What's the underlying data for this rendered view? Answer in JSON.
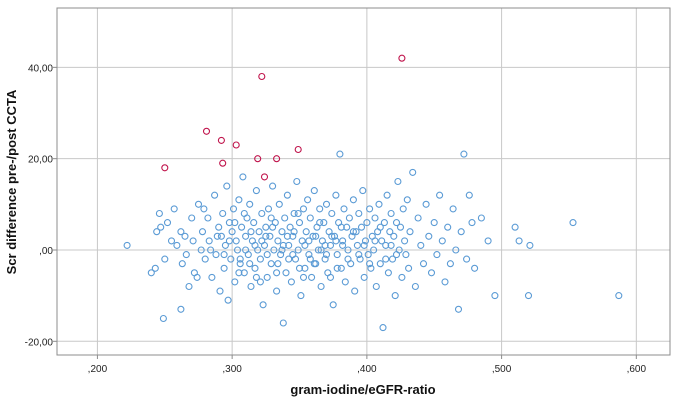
{
  "chart_data": {
    "type": "scatter",
    "title": "",
    "xlabel": "gram-iodine/eGFR-ratio",
    "ylabel": "Scr difference pre-/post CCTA",
    "xlim": [
      0.17,
      0.625
    ],
    "ylim": [
      -23,
      53
    ],
    "x_ticks": [
      0.2,
      0.3,
      0.4,
      0.5,
      0.6
    ],
    "x_tick_labels": [
      ",200",
      ",300",
      ",400",
      ",500",
      ",600"
    ],
    "y_ticks": [
      -20,
      0,
      20,
      40
    ],
    "y_tick_labels": [
      "-20,00",
      ",00",
      "20,00",
      "40,00"
    ],
    "grid": true,
    "legend": "none",
    "colors": {
      "normal": "#5b9bd5",
      "highlighted": "#c0144c",
      "grid": "#c8c8c8",
      "frame": "#8c8c8c"
    },
    "series": [
      {
        "values": [
          [
            0.222,
            1
          ],
          [
            0.24,
            -5
          ],
          [
            0.243,
            -4
          ],
          [
            0.244,
            4
          ],
          [
            0.246,
            8
          ],
          [
            0.247,
            5
          ],
          [
            0.249,
            -15
          ],
          [
            0.25,
            -2
          ],
          [
            0.252,
            6
          ],
          [
            0.255,
            2
          ],
          [
            0.257,
            9
          ],
          [
            0.259,
            1
          ],
          [
            0.262,
            -13
          ],
          [
            0.263,
            -3
          ],
          [
            0.265,
            3
          ],
          [
            0.268,
            -8
          ],
          [
            0.27,
            7
          ],
          [
            0.272,
            -5
          ],
          [
            0.275,
            10
          ],
          [
            0.277,
            0
          ],
          [
            0.278,
            4
          ],
          [
            0.28,
            -2
          ],
          [
            0.282,
            7
          ],
          [
            0.283,
            2
          ],
          [
            0.285,
            -6
          ],
          [
            0.287,
            12
          ],
          [
            0.288,
            -1
          ],
          [
            0.29,
            5
          ],
          [
            0.291,
            -9
          ],
          [
            0.292,
            3
          ],
          [
            0.293,
            8
          ],
          [
            0.294,
            -4
          ],
          [
            0.295,
            1
          ],
          [
            0.296,
            14
          ],
          [
            0.297,
            -11
          ],
          [
            0.298,
            6
          ],
          [
            0.299,
            -2
          ],
          [
            0.3,
            4
          ],
          [
            0.301,
            9
          ],
          [
            0.302,
            -7
          ],
          [
            0.303,
            2
          ],
          [
            0.304,
            0
          ],
          [
            0.305,
            11
          ],
          [
            0.306,
            -3
          ],
          [
            0.307,
            5
          ],
          [
            0.308,
            16
          ],
          [
            0.309,
            -5
          ],
          [
            0.31,
            3
          ],
          [
            0.311,
            7
          ],
          [
            0.312,
            -1
          ],
          [
            0.313,
            10
          ],
          [
            0.314,
            -8
          ],
          [
            0.315,
            2
          ],
          [
            0.316,
            6
          ],
          [
            0.317,
            -4
          ],
          [
            0.318,
            13
          ],
          [
            0.319,
            0
          ],
          [
            0.32,
            4
          ],
          [
            0.321,
            -2
          ],
          [
            0.322,
            8
          ],
          [
            0.323,
            -12
          ],
          [
            0.324,
            1
          ],
          [
            0.325,
            5
          ],
          [
            0.326,
            -6
          ],
          [
            0.327,
            9
          ],
          [
            0.328,
            3
          ],
          [
            0.329,
            -3
          ],
          [
            0.33,
            14
          ],
          [
            0.331,
            0
          ],
          [
            0.332,
            6
          ],
          [
            0.333,
            -9
          ],
          [
            0.334,
            2
          ],
          [
            0.335,
            10
          ],
          [
            0.336,
            -1
          ],
          [
            0.337,
            4
          ],
          [
            0.338,
            -16
          ],
          [
            0.339,
            7
          ],
          [
            0.34,
            -5
          ],
          [
            0.341,
            12
          ],
          [
            0.342,
            1
          ],
          [
            0.343,
            5
          ],
          [
            0.344,
            -7
          ],
          [
            0.345,
            3
          ],
          [
            0.346,
            8
          ],
          [
            0.347,
            -2
          ],
          [
            0.348,
            15
          ],
          [
            0.349,
            0
          ],
          [
            0.35,
            6
          ],
          [
            0.351,
            -10
          ],
          [
            0.352,
            2
          ],
          [
            0.353,
            9
          ],
          [
            0.354,
            -4
          ],
          [
            0.355,
            4
          ],
          [
            0.356,
            11
          ],
          [
            0.357,
            -1
          ],
          [
            0.358,
            7
          ],
          [
            0.359,
            -6
          ],
          [
            0.36,
            3
          ],
          [
            0.361,
            13
          ],
          [
            0.362,
            -3
          ],
          [
            0.363,
            5
          ],
          [
            0.364,
            0
          ],
          [
            0.365,
            9
          ],
          [
            0.366,
            -8
          ],
          [
            0.367,
            2
          ],
          [
            0.368,
            6
          ],
          [
            0.369,
            -2
          ],
          [
            0.37,
            10
          ],
          [
            0.371,
            -5
          ],
          [
            0.372,
            4
          ],
          [
            0.373,
            1
          ],
          [
            0.374,
            8
          ],
          [
            0.375,
            -12
          ],
          [
            0.376,
            3
          ],
          [
            0.377,
            12
          ],
          [
            0.378,
            -1
          ],
          [
            0.379,
            6
          ],
          [
            0.38,
            21
          ],
          [
            0.381,
            -4
          ],
          [
            0.382,
            2
          ],
          [
            0.383,
            9
          ],
          [
            0.384,
            -7
          ],
          [
            0.385,
            5
          ],
          [
            0.386,
            0
          ],
          [
            0.387,
            7
          ],
          [
            0.388,
            -3
          ],
          [
            0.389,
            3
          ],
          [
            0.39,
            11
          ],
          [
            0.391,
            -9
          ],
          [
            0.392,
            4
          ],
          [
            0.393,
            1
          ],
          [
            0.394,
            8
          ],
          [
            0.395,
            -2
          ],
          [
            0.396,
            5
          ],
          [
            0.397,
            13
          ],
          [
            0.398,
            -6
          ],
          [
            0.399,
            2
          ],
          [
            0.4,
            6
          ],
          [
            0.401,
            -1
          ],
          [
            0.402,
            9
          ],
          [
            0.403,
            -4
          ],
          [
            0.404,
            3
          ],
          [
            0.405,
            0
          ],
          [
            0.406,
            7
          ],
          [
            0.407,
            -8
          ],
          [
            0.408,
            4
          ],
          [
            0.409,
            10
          ],
          [
            0.41,
            -3
          ],
          [
            0.411,
            2
          ],
          [
            0.412,
            -17
          ],
          [
            0.413,
            6
          ],
          [
            0.414,
            1
          ],
          [
            0.415,
            12
          ],
          [
            0.416,
            -5
          ],
          [
            0.417,
            4
          ],
          [
            0.418,
            8
          ],
          [
            0.419,
            -2
          ],
          [
            0.42,
            3
          ],
          [
            0.421,
            -10
          ],
          [
            0.422,
            6
          ],
          [
            0.423,
            15
          ],
          [
            0.424,
            0
          ],
          [
            0.425,
            5
          ],
          [
            0.426,
            -6
          ],
          [
            0.427,
            9
          ],
          [
            0.428,
            2
          ],
          [
            0.429,
            -1
          ],
          [
            0.43,
            11
          ],
          [
            0.431,
            -4
          ],
          [
            0.432,
            4
          ],
          [
            0.434,
            17
          ],
          [
            0.436,
            -8
          ],
          [
            0.438,
            7
          ],
          [
            0.44,
            1
          ],
          [
            0.442,
            -3
          ],
          [
            0.444,
            10
          ],
          [
            0.446,
            3
          ],
          [
            0.448,
            -5
          ],
          [
            0.45,
            6
          ],
          [
            0.452,
            -1
          ],
          [
            0.454,
            12
          ],
          [
            0.456,
            2
          ],
          [
            0.458,
            -7
          ],
          [
            0.46,
            5
          ],
          [
            0.462,
            -3
          ],
          [
            0.464,
            9
          ],
          [
            0.466,
            0
          ],
          [
            0.468,
            -13
          ],
          [
            0.47,
            4
          ],
          [
            0.472,
            21
          ],
          [
            0.474,
            -2
          ],
          [
            0.476,
            12
          ],
          [
            0.478,
            6
          ],
          [
            0.48,
            -4
          ],
          [
            0.485,
            7
          ],
          [
            0.49,
            2
          ],
          [
            0.495,
            -10
          ],
          [
            0.51,
            5
          ],
          [
            0.513,
            2
          ],
          [
            0.52,
            -10
          ],
          [
            0.521,
            1
          ],
          [
            0.553,
            6
          ],
          [
            0.587,
            -10
          ],
          [
            0.262,
            4
          ],
          [
            0.266,
            -1
          ],
          [
            0.271,
            2
          ],
          [
            0.274,
            -6
          ],
          [
            0.279,
            9
          ],
          [
            0.284,
            0
          ],
          [
            0.289,
            3
          ],
          [
            0.294,
            -1
          ],
          [
            0.298,
            2
          ],
          [
            0.302,
            6
          ],
          [
            0.306,
            -2
          ],
          [
            0.31,
            0
          ],
          [
            0.314,
            4
          ],
          [
            0.318,
            -6
          ],
          [
            0.322,
            2
          ],
          [
            0.326,
            -1
          ],
          [
            0.33,
            5
          ],
          [
            0.334,
            -3
          ],
          [
            0.338,
            1
          ],
          [
            0.342,
            -2
          ],
          [
            0.346,
            4
          ],
          [
            0.35,
            -4
          ],
          [
            0.354,
            1
          ],
          [
            0.358,
            -2
          ],
          [
            0.362,
            3
          ],
          [
            0.366,
            0
          ],
          [
            0.37,
            -1
          ],
          [
            0.374,
            3
          ],
          [
            0.378,
            -4
          ],
          [
            0.382,
            1
          ],
          [
            0.386,
            -2
          ],
          [
            0.39,
            4
          ],
          [
            0.394,
            -1
          ],
          [
            0.398,
            1
          ],
          [
            0.402,
            -3
          ],
          [
            0.406,
            2
          ],
          [
            0.41,
            5
          ],
          [
            0.414,
            -2
          ],
          [
            0.418,
            1
          ],
          [
            0.422,
            -1
          ],
          [
            0.305,
            -5
          ],
          [
            0.309,
            8
          ],
          [
            0.313,
            -3
          ],
          [
            0.317,
            1
          ],
          [
            0.321,
            -7
          ],
          [
            0.325,
            3
          ],
          [
            0.329,
            7
          ],
          [
            0.333,
            -5
          ],
          [
            0.337,
            0
          ],
          [
            0.341,
            3
          ],
          [
            0.345,
            -1
          ],
          [
            0.349,
            8
          ],
          [
            0.353,
            -6
          ],
          [
            0.357,
            2
          ],
          [
            0.361,
            -3
          ],
          [
            0.365,
            6
          ],
          [
            0.369,
            1
          ],
          [
            0.373,
            -6
          ],
          [
            0.377,
            2
          ],
          [
            0.381,
            5
          ]
        ]
      },
      {
        "values": [
          [
            0.25,
            18
          ],
          [
            0.281,
            26
          ],
          [
            0.292,
            24
          ],
          [
            0.293,
            19
          ],
          [
            0.303,
            23
          ],
          [
            0.319,
            20
          ],
          [
            0.322,
            38
          ],
          [
            0.324,
            16
          ],
          [
            0.333,
            20
          ],
          [
            0.349,
            22
          ],
          [
            0.426,
            42
          ]
        ]
      }
    ]
  }
}
